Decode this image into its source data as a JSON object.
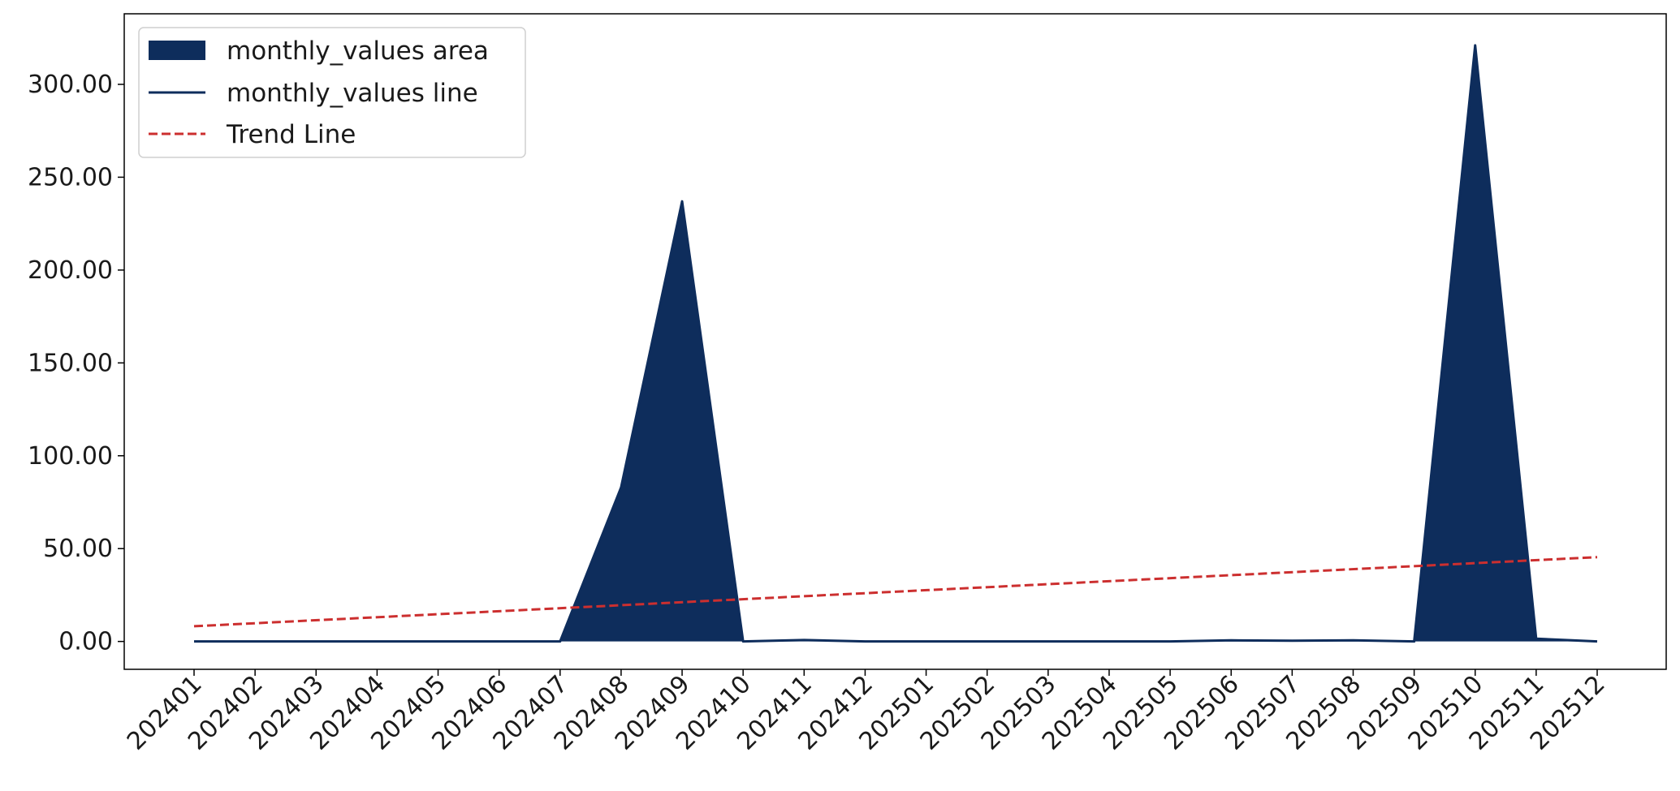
{
  "chart_data": {
    "type": "area",
    "categories": [
      "202401",
      "202402",
      "202403",
      "202404",
      "202405",
      "202406",
      "202407",
      "202408",
      "202409",
      "202410",
      "202411",
      "202412",
      "202501",
      "202502",
      "202503",
      "202504",
      "202505",
      "202506",
      "202507",
      "202508",
      "202509",
      "202510",
      "202511",
      "202512"
    ],
    "series": [
      {
        "name": "monthly_values area",
        "kind": "area",
        "values": [
          0,
          0,
          0,
          0,
          0,
          0,
          0,
          83,
          237,
          0,
          0.8,
          0,
          0,
          0,
          0,
          0,
          0,
          0.6,
          0.4,
          0.6,
          0,
          321,
          1.5,
          0
        ]
      },
      {
        "name": "monthly_values line",
        "kind": "line",
        "values": [
          0,
          0,
          0,
          0,
          0,
          0,
          0,
          83,
          237,
          0,
          0.8,
          0,
          0,
          0,
          0,
          0,
          0,
          0.6,
          0.4,
          0.6,
          0,
          321,
          1.5,
          0
        ]
      },
      {
        "name": "Trend Line",
        "kind": "trend",
        "start": 8.2,
        "end": 45.4
      }
    ],
    "yticks": [
      "0.00",
      "50.00",
      "100.00",
      "150.00",
      "200.00",
      "250.00",
      "300.00"
    ],
    "ylim": [
      -15,
      338
    ],
    "title": "",
    "xlabel": "",
    "ylabel": "",
    "legend": "top-left",
    "grid": false,
    "colors": {
      "area": "#0e2d5c",
      "line": "#0e2d5c",
      "trend": "#cc2f2f"
    }
  }
}
